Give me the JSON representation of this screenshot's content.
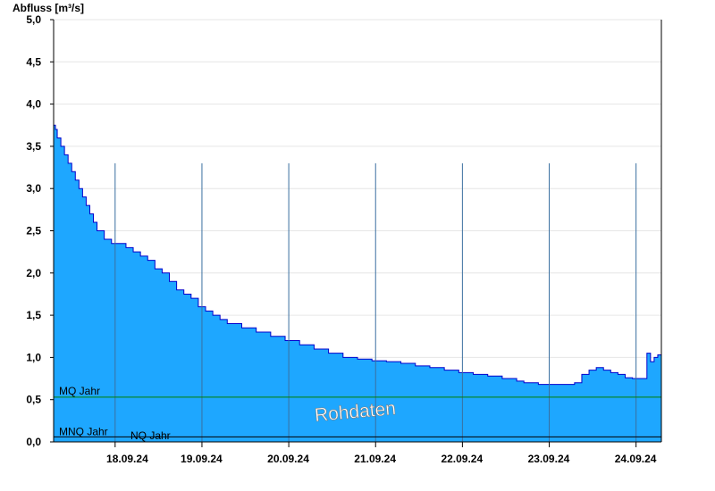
{
  "chart_data": {
    "type": "area",
    "ylabel": "Abfluss [m³/s]",
    "ylim": [
      0,
      5.0
    ],
    "yticks": [
      0,
      0.5,
      1.0,
      1.5,
      2.0,
      2.5,
      3.0,
      3.5,
      4.0,
      4.5,
      5.0
    ],
    "ytick_labels": [
      "0,0",
      "0,5",
      "1,0",
      "1,5",
      "2,0",
      "2,5",
      "3,0",
      "3,5",
      "4,0",
      "4,5",
      "5,0"
    ],
    "xlim": [
      "17.09.24 00:00",
      "24.09.24 07:00"
    ],
    "x_day_boundaries": [
      "18.09.24",
      "19.09.24",
      "20.09.24",
      "21.09.24",
      "22.09.24",
      "23.09.24",
      "24.09.24"
    ],
    "xtick_labels": [
      "18.09.24",
      "19.09.24",
      "20.09.24",
      "21.09.24",
      "22.09.24",
      "23.09.24",
      "24.09.24"
    ],
    "grid": true,
    "watermark": "Rohdaten",
    "reference_lines": [
      {
        "label": "MQ Jahr",
        "value": 0.53,
        "color": "#008000"
      },
      {
        "label": "MNQ Jahr",
        "value": 0.06,
        "color": "#000000"
      },
      {
        "label": "NQ Jahr",
        "value": 0.06,
        "color": "#000000"
      }
    ],
    "series": [
      {
        "color": "#1ea7ff",
        "line_color": "#0000cc",
        "x_hours": [
          0,
          0.5,
          1,
          2,
          3,
          4,
          5,
          6,
          7,
          8,
          9,
          10,
          11,
          12,
          14,
          16,
          18,
          20,
          22,
          24,
          26,
          28,
          30,
          32,
          34,
          36,
          38,
          40,
          42,
          44,
          46,
          48,
          52,
          56,
          60,
          64,
          68,
          72,
          76,
          80,
          84,
          88,
          92,
          96,
          100,
          104,
          108,
          112,
          116,
          120,
          124,
          128,
          130,
          134,
          138,
          142,
          144,
          146,
          148,
          150,
          152,
          154,
          156,
          158,
          160,
          163,
          164,
          165,
          166,
          167
        ],
        "values": [
          3.75,
          3.7,
          3.6,
          3.5,
          3.4,
          3.3,
          3.2,
          3.1,
          3.0,
          2.9,
          2.8,
          2.7,
          2.6,
          2.5,
          2.4,
          2.35,
          2.35,
          2.3,
          2.25,
          2.2,
          2.15,
          2.05,
          2.0,
          1.9,
          1.8,
          1.75,
          1.7,
          1.6,
          1.55,
          1.5,
          1.45,
          1.4,
          1.35,
          1.3,
          1.25,
          1.2,
          1.15,
          1.1,
          1.05,
          1.0,
          0.98,
          0.96,
          0.95,
          0.93,
          0.9,
          0.88,
          0.85,
          0.82,
          0.8,
          0.78,
          0.75,
          0.72,
          0.7,
          0.68,
          0.68,
          0.68,
          0.7,
          0.8,
          0.85,
          0.88,
          0.85,
          0.82,
          0.8,
          0.76,
          0.75,
          0.75,
          1.05,
          0.95,
          1.0,
          1.03
        ]
      }
    ]
  }
}
